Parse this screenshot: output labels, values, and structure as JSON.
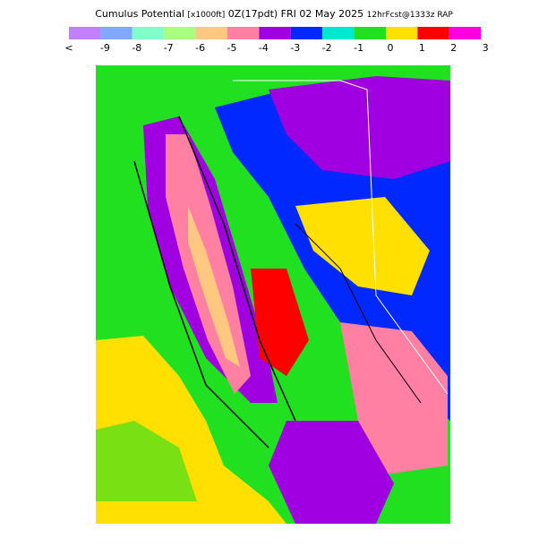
{
  "header": {
    "title": "Cumulus Potential",
    "units": "[x1000ft]",
    "valid": "0Z(17pdt) FRI 02 May 2025",
    "run": "12hrFcst@1333z RAP"
  },
  "legend": {
    "labels": [
      "<",
      "-9",
      "-8",
      "-7",
      "-6",
      "-5",
      "-4",
      "-3",
      "-2",
      "-1",
      "0",
      "1",
      "2",
      "3"
    ],
    "colors": [
      "#c080ff",
      "#80a8ff",
      "#80ffc8",
      "#a8ff80",
      "#ffc880",
      "#ff80a0",
      "#a000e0",
      "#0028ff",
      "#00e8d0",
      "#20e020",
      "#ffe000",
      "#ff0000",
      "#ff00e0"
    ]
  }
}
